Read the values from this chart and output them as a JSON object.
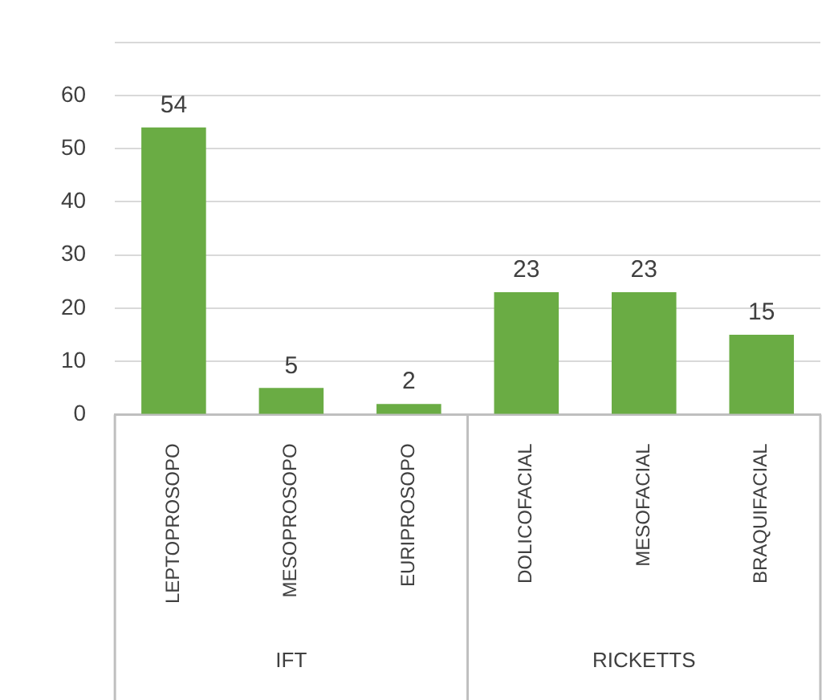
{
  "chart_data": {
    "type": "bar",
    "categories": [
      "LEPTOPROSOPO",
      "MESOPROSOPO",
      "EURIPROSOPO",
      "DOLICOFACIAL",
      "MESOFACIAL",
      "BRAQUIFACIAL"
    ],
    "values": [
      54,
      5,
      2,
      23,
      23,
      15
    ],
    "color": "#6aac44",
    "ylim": [
      0,
      70
    ],
    "yticks": [
      0,
      10,
      20,
      30,
      40,
      50,
      60,
      {
        "value": 70,
        "label": null
      }
    ],
    "grid": "y",
    "data_labels": true,
    "annotations": [
      "IFT",
      "RICKETTS"
    ]
  }
}
